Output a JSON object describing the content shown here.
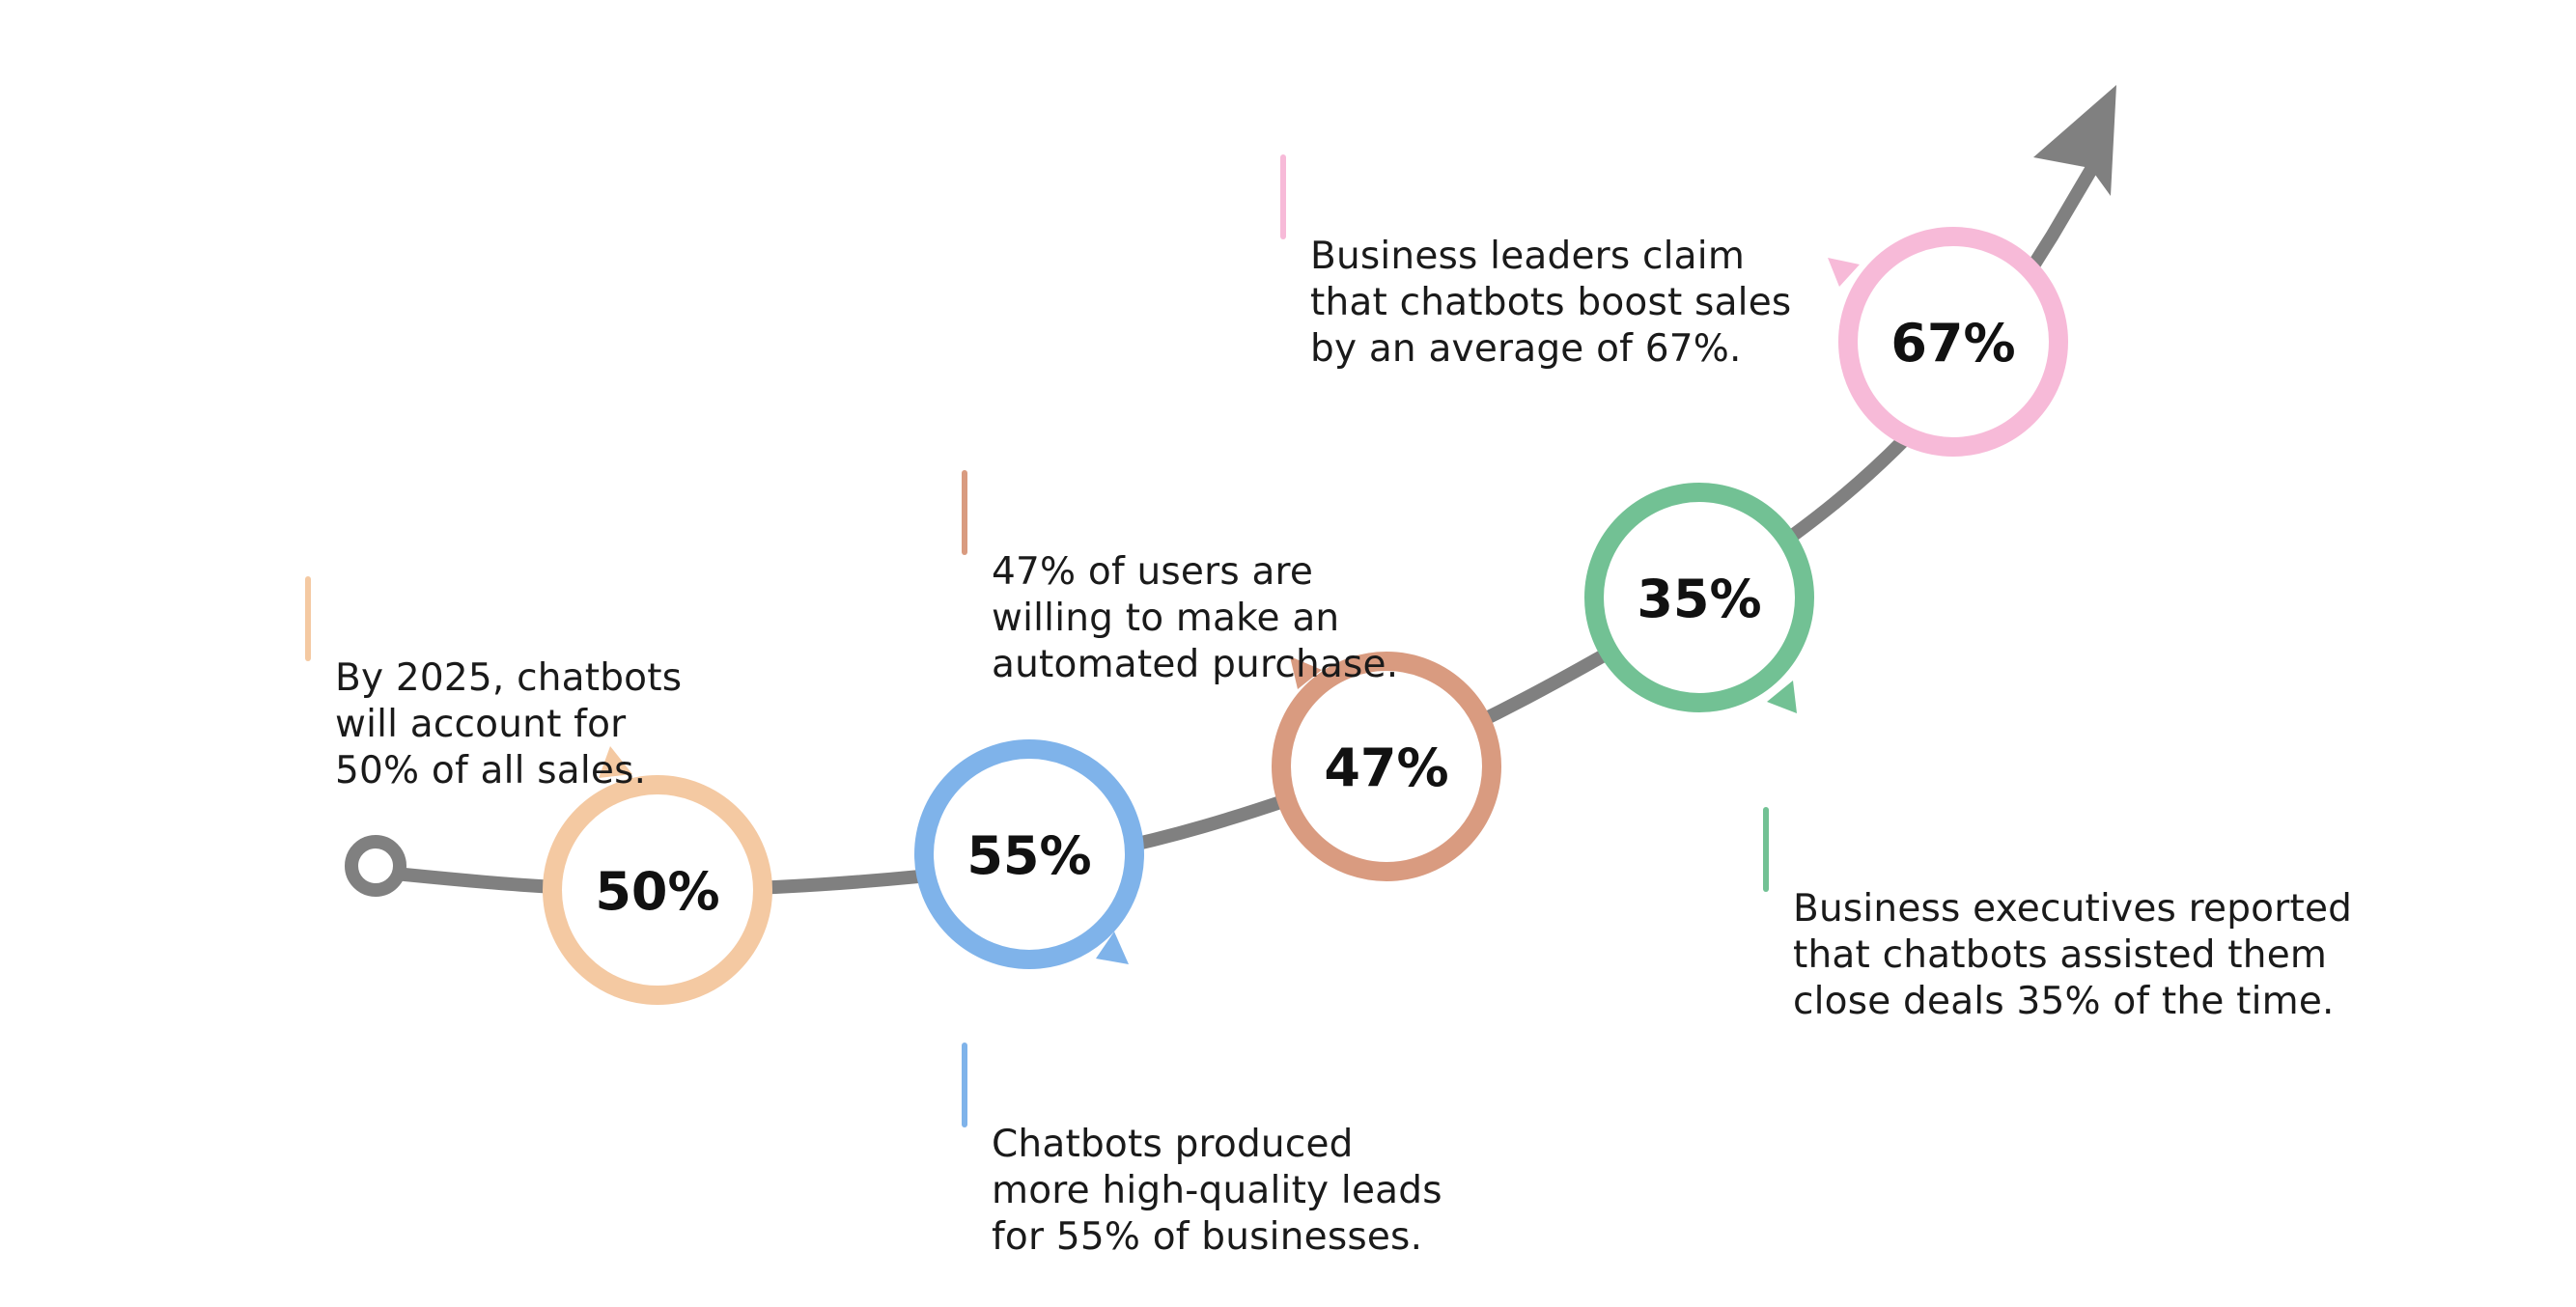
{
  "colors": {
    "path": "#808080",
    "text": "#1a1a1a",
    "peach": "#f4c9a2",
    "blue": "#7fb3ea",
    "terracotta": "#d99b80",
    "green": "#72c194",
    "pink": "#f7bad8"
  },
  "milestones": [
    {
      "id": "m1",
      "value": "50%",
      "color": "#f4c9a2",
      "caption": "By 2025, chatbots\nwill account for\n50% of all sales."
    },
    {
      "id": "m2",
      "value": "55%",
      "color": "#7fb3ea",
      "caption": "Chatbots produced\nmore high-quality leads\nfor 55% of businesses."
    },
    {
      "id": "m3",
      "value": "47%",
      "color": "#d99b80",
      "caption": "47% of users are\nwilling to make an\nautomated purchase."
    },
    {
      "id": "m4",
      "value": "35%",
      "color": "#72c194",
      "caption": "Business executives reported\nthat chatbots assisted them\nclose deals 35% of the time."
    },
    {
      "id": "m5",
      "value": "67%",
      "color": "#f7bad8",
      "caption": "Business leaders claim\nthat chatbots boost sales\nby an average of 67%."
    }
  ]
}
